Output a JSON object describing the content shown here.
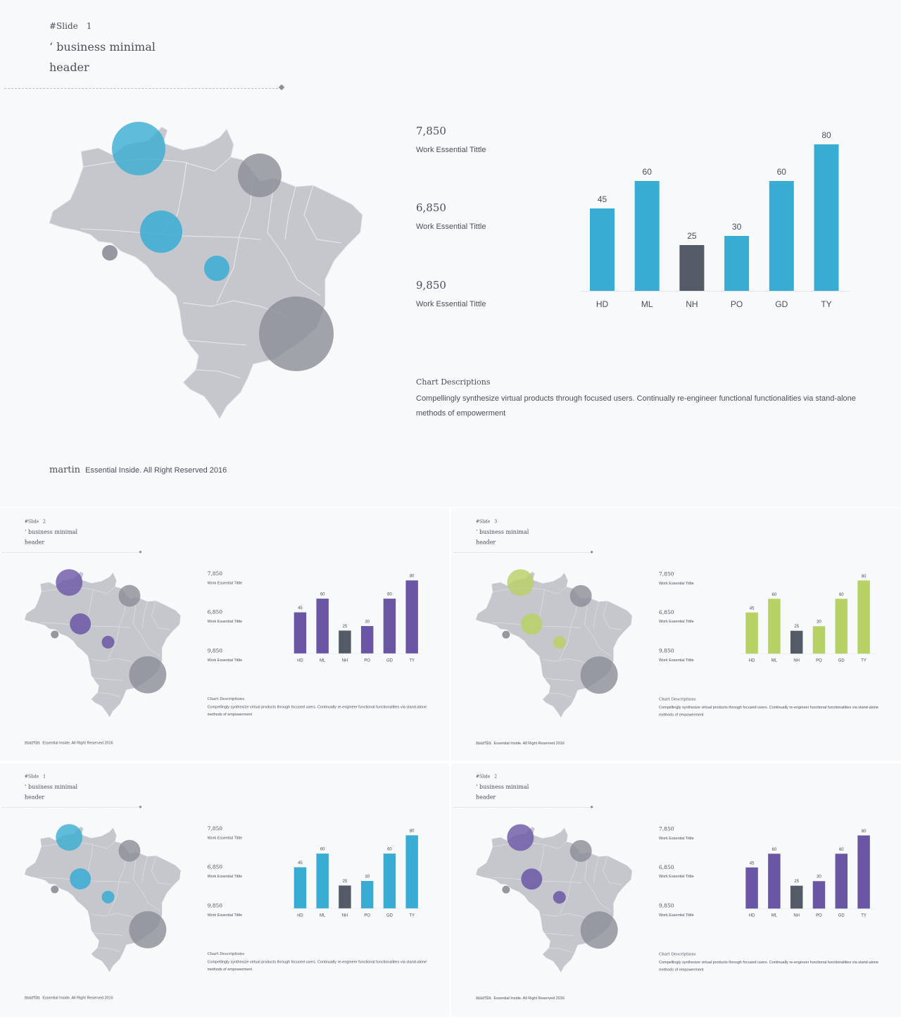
{
  "colors": {
    "map_fill": "#c5c7cd",
    "map_line": "#e9ebee",
    "dark": "#545a66",
    "bubble_dark": "#8a8d96",
    "accent_blue": "#38acd2",
    "accent_purple": "#6b56a6",
    "accent_green": "#b8d165"
  },
  "slides": [
    {
      "slide_label": "#Slide",
      "slide_number": "1",
      "accent": "#38acd2",
      "title_line1": "‘ business minimal",
      "title_line2": "header",
      "stats": [
        {
          "value": "7,850",
          "label": "Work Essential Tittle"
        },
        {
          "value": "6,850",
          "label": "Work Essential Tittle"
        },
        {
          "value": "9,850",
          "label": "Work Essential Tittle"
        }
      ],
      "desc_title": "Chart Descriptions",
      "desc_text": "Compellingly synthesize virtual products through focused users. Continually re-engineer functional functionalities via stand-alone methods of empowerment",
      "footer_brand": "martin",
      "footer_text": "Essential Inside. All Right Reserved 2016"
    },
    {
      "slide_label": "#Slide",
      "slide_number": "2",
      "accent": "#6b56a6",
      "title_line1": "‘ business minimal",
      "title_line2": "header",
      "stats": [
        {
          "value": "7,850",
          "label": "Work Essential Tittle"
        },
        {
          "value": "6,850",
          "label": "Work Essential Tittle"
        },
        {
          "value": "9,850",
          "label": "Work Essential Tittle"
        }
      ],
      "desc_title": "Chart Descriptions",
      "desc_text": "Compellingly synthesize virtual products through focused users. Continually re-engineer functional functionalities via stand-alone methods of empowerment",
      "footer_brand": "martin",
      "footer_text": "Essential Inside. All Right Reserved 2016"
    },
    {
      "slide_label": "#Slide",
      "slide_number": "3",
      "accent": "#b8d165",
      "title_line1": "‘ business minimal",
      "title_line2": "header",
      "stats": [
        {
          "value": "7,850",
          "label": "Work Essential Tittle"
        },
        {
          "value": "6,850",
          "label": "Work Essential Tittle"
        },
        {
          "value": "9,850",
          "label": "Work Essential Tittle"
        }
      ],
      "desc_title": "Chart Descriptions",
      "desc_text": "Compellingly synthesize virtual products through focused users. Continually re-engineer functional functionalities via stand-alone methods of empowerment",
      "footer_brand": "martin",
      "footer_text": "Essential Inside. All Right Reserved 2016"
    },
    {
      "slide_label": "#Slide",
      "slide_number": "1",
      "accent": "#38acd2",
      "title_line1": "‘ business minimal",
      "title_line2": "header",
      "stats": [
        {
          "value": "7,850",
          "label": "Work Essential Tittle"
        },
        {
          "value": "6,850",
          "label": "Work Essential Tittle"
        },
        {
          "value": "9,850",
          "label": "Work Essential Tittle"
        }
      ],
      "desc_title": "Chart Descriptions",
      "desc_text": "Compellingly synthesize virtual products through focused users. Continually re-engineer functional functionalities via stand-alone methods of empowerment",
      "footer_brand": "martin",
      "footer_text": "Essential Inside. All Right Reserved 2016"
    },
    {
      "slide_label": "#Slide",
      "slide_number": "2",
      "accent": "#6b56a6",
      "title_line1": "‘ business minimal",
      "title_line2": "header",
      "stats": [
        {
          "value": "7,850",
          "label": "Work Essential Tittle"
        },
        {
          "value": "6,850",
          "label": "Work Essential Tittle"
        },
        {
          "value": "9,850",
          "label": "Work Essential Tittle"
        }
      ],
      "desc_title": "Chart Descriptions",
      "desc_text": "Compellingly synthesize virtual products through focused users. Continually re-engineer functional functionalities via stand-alone methods of empowerment",
      "footer_brand": "martin",
      "footer_text": "Essential Inside. All Right Reserved 2016"
    }
  ],
  "chart_data": {
    "type": "bar",
    "categories": [
      "HD",
      "ML",
      "NH",
      "PO",
      "GD",
      "TY"
    ],
    "values": [
      45,
      60,
      25,
      30,
      60,
      80
    ],
    "highlight_category": "NH",
    "ylim": [
      0,
      80
    ],
    "grid": false,
    "data_labels": true
  }
}
